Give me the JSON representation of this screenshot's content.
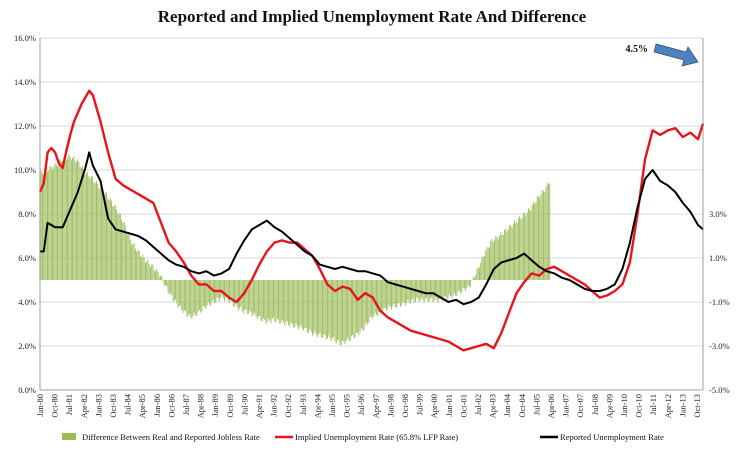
{
  "chart_data": {
    "type": "line",
    "title": "Reported and Implied Unemployment Rate And Difference",
    "x_tick_labels": [
      "Jan-80",
      "Oct-80",
      "Jul-81",
      "Apr-82",
      "Jan-83",
      "Oct-83",
      "Jul-84",
      "Apr-85",
      "Jan-86",
      "Oct-86",
      "Jul-87",
      "Apr-88",
      "Jan-89",
      "Oct-89",
      "Jul-90",
      "Apr-91",
      "Jan-92",
      "Oct-92",
      "Jul-93",
      "Apr-94",
      "Jan-95",
      "Oct-95",
      "Jul-96",
      "Apr-97",
      "Jan-98",
      "Oct-98",
      "Jul-99",
      "Apr-00",
      "Jan-01",
      "Oct-01",
      "Jul-02",
      "Apr-03",
      "Jan-04",
      "Oct-04",
      "Jul-05",
      "Apr-06",
      "Jan-07",
      "Oct-07",
      "Jul-08",
      "Apr-09",
      "Jan-10",
      "Oct-10",
      "Jul-11",
      "Apr-12",
      "Jan-13",
      "Oct-13"
    ],
    "left_axis": {
      "ylim": [
        0,
        16
      ],
      "tick_labels": [
        "0.0%",
        "2.0%",
        "4.0%",
        "6.0%",
        "8.0%",
        "10.0%",
        "12.0%",
        "14.0%",
        "16.0%"
      ]
    },
    "right_axis": {
      "ylim": [
        -5,
        11
      ],
      "tick_labels": [
        "-5.0%",
        "-3.0%",
        "-1.0%",
        "1.0%",
        "3.0%"
      ],
      "tick_values": [
        -5,
        -3,
        -1,
        1,
        3
      ]
    },
    "grid": true,
    "legend_position": "bottom",
    "annotation": {
      "text": "4.5%",
      "arrow_color": "#4f81bd"
    },
    "series": [
      {
        "name": "Difference Between Real and Reported Jobless Rate",
        "kind": "bar",
        "axis": "right",
        "color": "#9bbb59",
        "points": [
          [
            1980.0,
            4.8
          ],
          [
            1980.5,
            5.0
          ],
          [
            1981.0,
            5.2
          ],
          [
            1981.5,
            5.5
          ],
          [
            1982.0,
            5.6
          ],
          [
            1982.5,
            5.4
          ],
          [
            1983.0,
            4.9
          ],
          [
            1983.5,
            4.6
          ],
          [
            1984.0,
            4.2
          ],
          [
            1984.5,
            3.8
          ],
          [
            1985.0,
            3.3
          ],
          [
            1985.5,
            2.7
          ],
          [
            1986.0,
            1.8
          ],
          [
            1986.5,
            1.3
          ],
          [
            1987.0,
            0.9
          ],
          [
            1987.5,
            0.6
          ],
          [
            1988.0,
            0.2
          ],
          [
            1988.5,
            -0.5
          ],
          [
            1989.0,
            -1.0
          ],
          [
            1989.5,
            -1.4
          ],
          [
            1990.0,
            -1.7
          ],
          [
            1990.5,
            -1.5
          ],
          [
            1991.0,
            -1.2
          ],
          [
            1991.5,
            -1.0
          ],
          [
            1992.0,
            -0.8
          ],
          [
            1992.5,
            -0.9
          ],
          [
            1993.0,
            -1.2
          ],
          [
            1993.5,
            -1.4
          ],
          [
            1994.0,
            -1.5
          ],
          [
            1994.5,
            -1.7
          ],
          [
            1995.0,
            -1.9
          ],
          [
            1995.5,
            -1.8
          ],
          [
            1996.0,
            -1.9
          ],
          [
            1996.5,
            -2.0
          ],
          [
            1997.0,
            -2.1
          ],
          [
            1997.5,
            -2.2
          ],
          [
            1998.0,
            -2.4
          ],
          [
            1998.5,
            -2.5
          ],
          [
            1999.0,
            -2.6
          ],
          [
            1999.5,
            -2.7
          ],
          [
            2000.0,
            -2.9
          ],
          [
            2000.5,
            -2.7
          ],
          [
            2001.0,
            -2.5
          ],
          [
            2001.5,
            -2.2
          ],
          [
            2002.0,
            -1.7
          ],
          [
            2002.5,
            -1.5
          ],
          [
            2003.0,
            -1.3
          ],
          [
            2003.5,
            -1.2
          ],
          [
            2004.0,
            -1.1
          ],
          [
            2004.5,
            -1.0
          ],
          [
            2005.0,
            -0.9
          ],
          [
            2005.5,
            -0.9
          ],
          [
            2006.0,
            -0.9
          ],
          [
            2006.5,
            -0.9
          ],
          [
            2007.0,
            -0.8
          ],
          [
            2007.5,
            -0.7
          ],
          [
            2008.0,
            -0.5
          ],
          [
            2008.5,
            -0.3
          ],
          [
            2009.0,
            0.4
          ],
          [
            2009.5,
            1.2
          ],
          [
            2010.0,
            1.8
          ],
          [
            2010.5,
            2.0
          ],
          [
            2011.0,
            2.3
          ],
          [
            2011.5,
            2.6
          ],
          [
            2012.0,
            2.9
          ],
          [
            2012.5,
            3.2
          ],
          [
            2013.0,
            3.7
          ],
          [
            2013.5,
            4.1
          ],
          [
            2013.83,
            4.5
          ]
        ]
      },
      {
        "name": "Implied Unemployment Rate (65.8% LFP Rate)",
        "kind": "line",
        "axis": "left",
        "color": "#e8141b",
        "points": [
          [
            1980.0,
            9.0
          ],
          [
            1980.25,
            9.4
          ],
          [
            1980.5,
            10.8
          ],
          [
            1980.75,
            11.0
          ],
          [
            1981.0,
            10.8
          ],
          [
            1981.25,
            10.3
          ],
          [
            1981.5,
            10.1
          ],
          [
            1981.75,
            10.9
          ],
          [
            1982.0,
            11.6
          ],
          [
            1982.25,
            12.2
          ],
          [
            1982.5,
            12.6
          ],
          [
            1982.75,
            13.0
          ],
          [
            1983.0,
            13.3
          ],
          [
            1983.25,
            13.6
          ],
          [
            1983.5,
            13.4
          ],
          [
            1983.75,
            12.8
          ],
          [
            1984.0,
            12.2
          ],
          [
            1984.5,
            10.8
          ],
          [
            1985.0,
            9.6
          ],
          [
            1985.5,
            9.3
          ],
          [
            1986.0,
            9.1
          ],
          [
            1986.5,
            8.9
          ],
          [
            1987.0,
            8.7
          ],
          [
            1987.5,
            8.5
          ],
          [
            1988.0,
            7.6
          ],
          [
            1988.5,
            6.7
          ],
          [
            1989.0,
            6.3
          ],
          [
            1989.5,
            5.8
          ],
          [
            1990.0,
            5.2
          ],
          [
            1990.5,
            4.8
          ],
          [
            1991.0,
            4.8
          ],
          [
            1991.5,
            4.5
          ],
          [
            1992.0,
            4.5
          ],
          [
            1992.5,
            4.2
          ],
          [
            1993.0,
            4.0
          ],
          [
            1993.5,
            4.4
          ],
          [
            1994.0,
            5.0
          ],
          [
            1994.5,
            5.7
          ],
          [
            1995.0,
            6.3
          ],
          [
            1995.5,
            6.7
          ],
          [
            1996.0,
            6.8
          ],
          [
            1996.5,
            6.7
          ],
          [
            1997.0,
            6.7
          ],
          [
            1997.5,
            6.4
          ],
          [
            1998.0,
            6.1
          ],
          [
            1998.5,
            5.5
          ],
          [
            1999.0,
            4.8
          ],
          [
            1999.5,
            4.5
          ],
          [
            2000.0,
            4.7
          ],
          [
            2000.5,
            4.6
          ],
          [
            2001.0,
            4.1
          ],
          [
            2001.5,
            4.4
          ],
          [
            2002.0,
            4.2
          ],
          [
            2002.5,
            3.6
          ],
          [
            2003.0,
            3.3
          ],
          [
            2003.5,
            3.1
          ],
          [
            2004.0,
            2.9
          ],
          [
            2004.5,
            2.7
          ],
          [
            2005.0,
            2.6
          ],
          [
            2005.5,
            2.5
          ],
          [
            2006.0,
            2.4
          ],
          [
            2006.5,
            2.3
          ],
          [
            2007.0,
            2.2
          ],
          [
            2007.5,
            2.0
          ],
          [
            2008.0,
            1.8
          ],
          [
            2008.5,
            1.9
          ],
          [
            2009.0,
            2.0
          ],
          [
            2009.5,
            2.1
          ],
          [
            2010.0,
            1.9
          ],
          [
            2010.5,
            2.6
          ],
          [
            2011.0,
            3.5
          ],
          [
            2011.5,
            4.4
          ],
          [
            2012.0,
            4.9
          ],
          [
            2012.5,
            5.3
          ],
          [
            2013.0,
            5.2
          ],
          [
            2013.5,
            5.5
          ],
          [
            2014.0,
            5.6
          ],
          [
            2014.5,
            5.4
          ],
          [
            2015.0,
            5.2
          ],
          [
            2015.5,
            5.0
          ],
          [
            2016.0,
            4.8
          ],
          [
            2016.5,
            4.5
          ],
          [
            2017.0,
            4.2
          ],
          [
            2017.5,
            4.3
          ],
          [
            2018.0,
            4.5
          ],
          [
            2018.5,
            4.8
          ],
          [
            2019.0,
            5.8
          ],
          [
            2019.5,
            8.0
          ],
          [
            2020.0,
            10.5
          ],
          [
            2020.5,
            11.8
          ],
          [
            2021.0,
            11.6
          ],
          [
            2021.5,
            11.8
          ],
          [
            2022.0,
            11.9
          ],
          [
            2022.5,
            11.5
          ],
          [
            2023.0,
            11.7
          ],
          [
            2023.5,
            11.4
          ],
          [
            2023.83,
            12.1
          ]
        ]
      },
      {
        "name": "Reported Unemployment Rate",
        "kind": "line",
        "axis": "left",
        "color": "#000000",
        "points": [
          [
            1980.0,
            6.3
          ],
          [
            1980.25,
            6.3
          ],
          [
            1980.5,
            7.6
          ],
          [
            1980.75,
            7.5
          ],
          [
            1981.0,
            7.4
          ],
          [
            1981.5,
            7.4
          ],
          [
            1982.0,
            8.2
          ],
          [
            1982.5,
            9.0
          ],
          [
            1983.0,
            10.1
          ],
          [
            1983.25,
            10.8
          ],
          [
            1983.5,
            10.2
          ],
          [
            1984.0,
            9.5
          ],
          [
            1984.5,
            7.8
          ],
          [
            1985.0,
            7.3
          ],
          [
            1985.5,
            7.2
          ],
          [
            1986.0,
            7.1
          ],
          [
            1986.5,
            7.0
          ],
          [
            1987.0,
            6.8
          ],
          [
            1987.5,
            6.5
          ],
          [
            1988.0,
            6.2
          ],
          [
            1988.5,
            5.9
          ],
          [
            1989.0,
            5.7
          ],
          [
            1989.5,
            5.6
          ],
          [
            1990.0,
            5.4
          ],
          [
            1990.5,
            5.3
          ],
          [
            1991.0,
            5.4
          ],
          [
            1991.5,
            5.2
          ],
          [
            1992.0,
            5.3
          ],
          [
            1992.5,
            5.5
          ],
          [
            1993.0,
            6.2
          ],
          [
            1993.5,
            6.8
          ],
          [
            1994.0,
            7.3
          ],
          [
            1994.5,
            7.5
          ],
          [
            1995.0,
            7.7
          ],
          [
            1995.5,
            7.4
          ],
          [
            1996.0,
            7.2
          ],
          [
            1996.5,
            6.9
          ],
          [
            1997.0,
            6.6
          ],
          [
            1997.5,
            6.3
          ],
          [
            1998.0,
            6.1
          ],
          [
            1998.5,
            5.7
          ],
          [
            1999.0,
            5.6
          ],
          [
            1999.5,
            5.5
          ],
          [
            2000.0,
            5.6
          ],
          [
            2000.5,
            5.5
          ],
          [
            2001.0,
            5.4
          ],
          [
            2001.5,
            5.4
          ],
          [
            2002.0,
            5.3
          ],
          [
            2002.5,
            5.2
          ],
          [
            2003.0,
            4.9
          ],
          [
            2003.5,
            4.8
          ],
          [
            2004.0,
            4.7
          ],
          [
            2004.5,
            4.6
          ],
          [
            2005.0,
            4.5
          ],
          [
            2005.5,
            4.4
          ],
          [
            2006.0,
            4.4
          ],
          [
            2006.5,
            4.2
          ],
          [
            2007.0,
            4.0
          ],
          [
            2007.5,
            4.1
          ],
          [
            2008.0,
            3.9
          ],
          [
            2008.5,
            4.0
          ],
          [
            2009.0,
            4.2
          ],
          [
            2009.5,
            4.8
          ],
          [
            2010.0,
            5.5
          ],
          [
            2010.5,
            5.8
          ],
          [
            2011.0,
            5.9
          ],
          [
            2011.5,
            6.0
          ],
          [
            2012.0,
            6.2
          ],
          [
            2012.5,
            5.9
          ],
          [
            2013.0,
            5.6
          ],
          [
            2013.5,
            5.4
          ],
          [
            2014.0,
            5.3
          ],
          [
            2014.5,
            5.1
          ],
          [
            2015.0,
            5.0
          ],
          [
            2015.5,
            4.8
          ],
          [
            2016.0,
            4.6
          ],
          [
            2016.5,
            4.5
          ],
          [
            2017.0,
            4.5
          ],
          [
            2017.5,
            4.6
          ],
          [
            2018.0,
            4.8
          ],
          [
            2018.5,
            5.5
          ],
          [
            2019.0,
            6.7
          ],
          [
            2019.5,
            8.3
          ],
          [
            2020.0,
            9.6
          ],
          [
            2020.5,
            10.0
          ],
          [
            2021.0,
            9.5
          ],
          [
            2021.5,
            9.3
          ],
          [
            2022.0,
            9.0
          ],
          [
            2022.5,
            8.5
          ],
          [
            2023.0,
            8.1
          ],
          [
            2023.5,
            7.5
          ],
          [
            2023.83,
            7.3
          ]
        ]
      }
    ]
  }
}
